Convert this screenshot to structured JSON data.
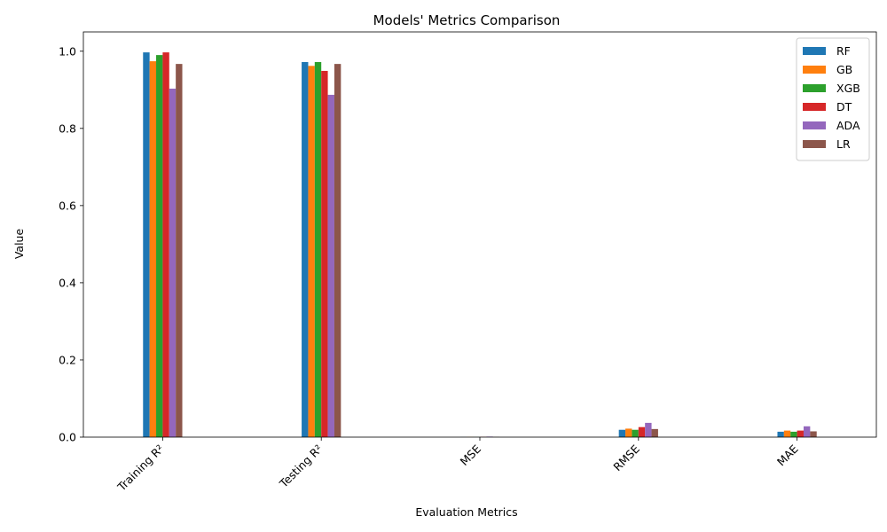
{
  "chart_data": {
    "type": "bar",
    "title": "Models' Metrics Comparison",
    "xlabel": "Evaluation Metrics",
    "ylabel": "Value",
    "categories": [
      "Training R²",
      "Testing R²",
      "MSE",
      "RMSE",
      "MAE"
    ],
    "ylim": [
      0,
      1.05
    ],
    "yticks": [
      0.0,
      0.2,
      0.4,
      0.6,
      0.8,
      1.0
    ],
    "ytick_labels": [
      "0.0",
      "0.2",
      "0.4",
      "0.6",
      "0.8",
      "1.0"
    ],
    "grid": false,
    "legend_position": "top-right",
    "series": [
      {
        "name": "RF",
        "color": "#1f77b4",
        "values": [
          0.997,
          0.972,
          0.0004,
          0.019,
          0.014
        ]
      },
      {
        "name": "GB",
        "color": "#ff7f0e",
        "values": [
          0.974,
          0.962,
          0.0005,
          0.022,
          0.017
        ]
      },
      {
        "name": "XGB",
        "color": "#2ca02c",
        "values": [
          0.99,
          0.972,
          0.0004,
          0.019,
          0.014
        ]
      },
      {
        "name": "DT",
        "color": "#d62728",
        "values": [
          0.997,
          0.949,
          0.0007,
          0.026,
          0.017
        ]
      },
      {
        "name": "ADA",
        "color": "#9467bd",
        "values": [
          0.903,
          0.887,
          0.0014,
          0.037,
          0.028
        ]
      },
      {
        "name": "LR",
        "color": "#8c564b",
        "values": [
          0.967,
          0.967,
          0.0005,
          0.021,
          0.015
        ]
      }
    ]
  }
}
